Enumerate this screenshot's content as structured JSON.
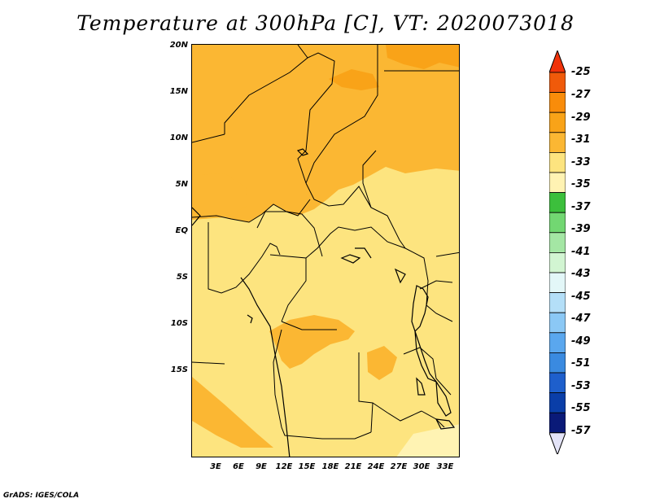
{
  "title": "Temperature at 300hPa [C], VT: 2020073018",
  "credit": "GrADS: IGES/COLA",
  "map": {
    "lat_labels": [
      "20N",
      "15N",
      "10N",
      "5N",
      "EQ",
      "5S",
      "10S",
      "15S"
    ],
    "lon_labels": [
      "3E",
      "6E",
      "9E",
      "12E",
      "15E",
      "18E",
      "21E",
      "24E",
      "27E",
      "30E",
      "33E"
    ]
  },
  "colorbar": {
    "labels": [
      "-25",
      "-27",
      "-29",
      "-31",
      "-33",
      "-35",
      "-37",
      "-39",
      "-41",
      "-43",
      "-45",
      "-47",
      "-49",
      "-51",
      "-53",
      "-55",
      "-57"
    ],
    "colors": [
      "#f05a0a",
      "#f98c0a",
      "#f9a318",
      "#fbb733",
      "#fde47f",
      "#fff3b3",
      "#3cbf3c",
      "#72d772",
      "#a4e6a4",
      "#d2f5d2",
      "#e3f7f8",
      "#b4dff8",
      "#8bc8f5",
      "#5aa7ee",
      "#3a8ae0",
      "#1e5fcc",
      "#0a3ea8",
      "#0a1a78"
    ],
    "upper_tip_color": "#f0320a",
    "lower_tip_color": "#e3e3f7"
  }
}
